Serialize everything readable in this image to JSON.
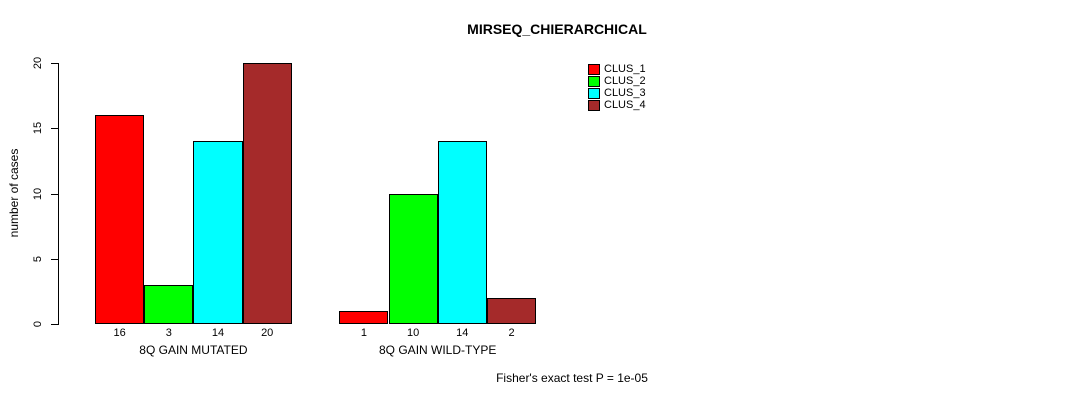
{
  "title": "MIRSEQ_CHIERARCHICAL",
  "caption": "Fisher's exact test P = 1e-05",
  "colors": {
    "clus_1": "#FF0000",
    "clus_2": "#00FF00",
    "clus_3": "#00FFFF",
    "clus_4": "#A52A2A",
    "axis": "#000000",
    "background": "#FFFFFF"
  },
  "chart_data": {
    "type": "bar",
    "title": "MIRSEQ_CHIERARCHICAL",
    "xlabel": "",
    "ylabel": "number of cases",
    "ylim": [
      0,
      20
    ],
    "yticks": [
      0,
      5,
      10,
      15,
      20
    ],
    "categories": [
      "8Q GAIN MUTATED",
      "8Q GAIN WILD-TYPE"
    ],
    "series": [
      {
        "name": "CLUS_1",
        "color": "#FF0000",
        "values": [
          16,
          1
        ]
      },
      {
        "name": "CLUS_2",
        "color": "#00FF00",
        "values": [
          3,
          10
        ]
      },
      {
        "name": "CLUS_3",
        "color": "#00FFFF",
        "values": [
          14,
          14
        ]
      },
      {
        "name": "CLUS_4",
        "color": "#A52A2A",
        "values": [
          20,
          2
        ]
      }
    ],
    "bar_value_labels": [
      [
        "16",
        "3",
        "14",
        "20"
      ],
      [
        "1",
        "10",
        "14",
        "2"
      ]
    ],
    "legend_entries": [
      "CLUS_1",
      "CLUS_2",
      "CLUS_3",
      "CLUS_4"
    ],
    "legend_position": "top-center-inside",
    "grid": false,
    "annotation": "Fisher's exact test P = 1e-05"
  }
}
